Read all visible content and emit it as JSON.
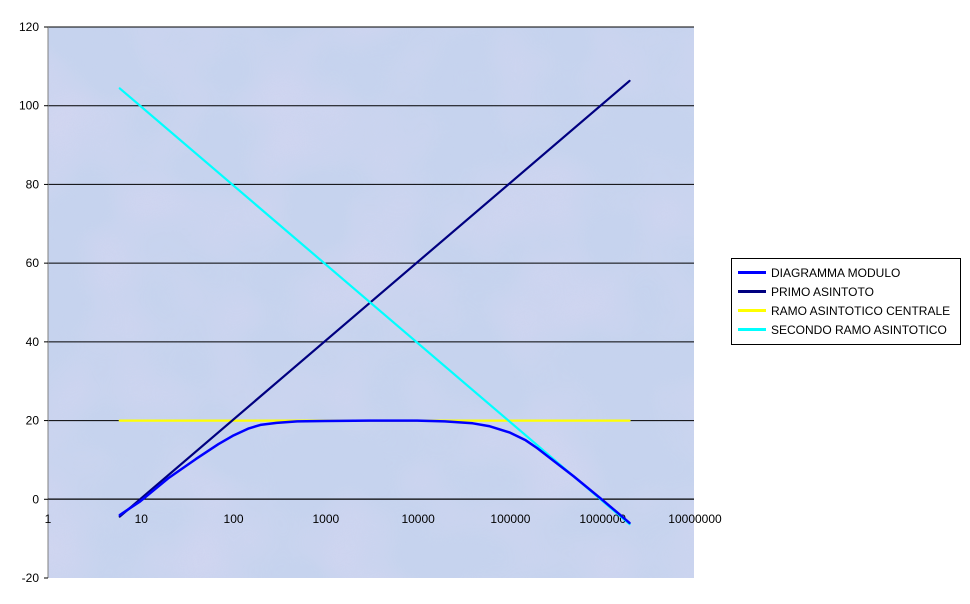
{
  "chart_data": {
    "type": "line",
    "x_scale": "log",
    "ylim": [
      -20,
      120
    ],
    "y_ticks": [
      -20,
      0,
      20,
      40,
      60,
      80,
      100,
      120
    ],
    "x_ticks": [
      1,
      10,
      100,
      1000,
      10000,
      100000,
      1000000,
      10000000
    ],
    "x_tick_labels": [
      "1",
      "10",
      "100",
      "1000",
      "10000",
      "100000",
      "1000000",
      "10000000"
    ],
    "grid": "horizontal",
    "legend_position": "right",
    "plot_background": "#c6d4ee",
    "series": [
      {
        "name": "DIAGRAMMA MODULO",
        "color": "#0000ff",
        "x": [
          6,
          10,
          20,
          40,
          70,
          100,
          150,
          200,
          300,
          500,
          1000,
          3000,
          10000,
          20000,
          40000,
          60000,
          100000,
          150000,
          200000,
          300000,
          500000,
          1000000,
          1500000,
          2000000
        ],
        "y": [
          -4.0,
          -0.5,
          5.3,
          10.2,
          14.0,
          16.1,
          18.0,
          18.9,
          19.4,
          19.8,
          19.9,
          20.0,
          20.0,
          19.8,
          19.3,
          18.6,
          17.0,
          15.0,
          13.0,
          9.8,
          5.8,
          0.0,
          -3.5,
          -6.0
        ]
      },
      {
        "name": "PRIMO ASINTOTO",
        "color": "#000080",
        "x": [
          6,
          2000000
        ],
        "y": [
          -4.4,
          106.3
        ]
      },
      {
        "name": "RAMO ASINTOTICO CENTRALE",
        "color": "#ffff00",
        "x": [
          6,
          2000000
        ],
        "y": [
          20,
          20
        ]
      },
      {
        "name": "SECONDO RAMO ASINTOTICO",
        "color": "#00ffff",
        "x": [
          6,
          2000000
        ],
        "y": [
          104.4,
          -6.3
        ]
      }
    ]
  }
}
